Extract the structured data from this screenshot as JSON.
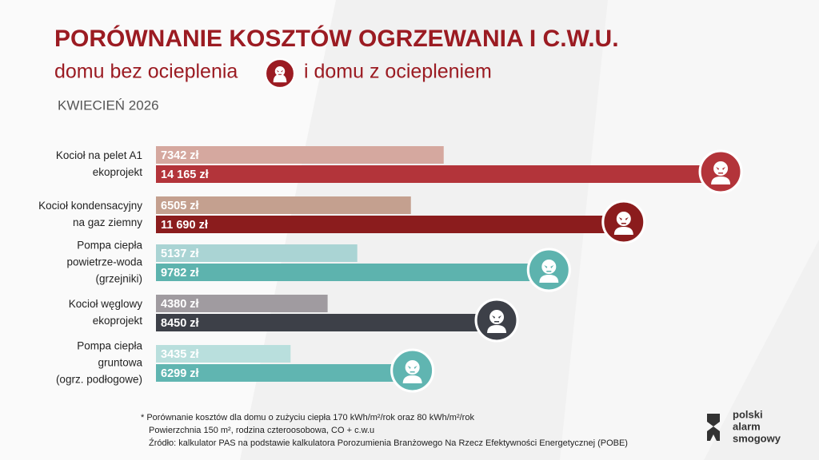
{
  "header": {
    "title": "PORÓWNANIE KOSZTÓW OGRZEWANIA I C.W.U.",
    "subtitle_left": "domu bez ocieplenia",
    "subtitle_right": "i domu z ociepleniem",
    "date": "KWIECIEŃ 2026"
  },
  "chart_data": {
    "type": "hbar-pairs",
    "categories": [
      [
        "Kocioł na pelet A1",
        "ekoprojekt"
      ],
      [
        "Kocioł kondensacyjny",
        "na gaz ziemny"
      ],
      [
        "Pompa ciepła",
        "powietrze-woda",
        "(grzejniki)"
      ],
      [
        "Kocioł węglowy",
        "ekoprojekt"
      ],
      [
        "Pompa ciepła",
        "gruntowa",
        "(ogrz. podłogowe)"
      ]
    ],
    "series": [
      {
        "colors": [
          "#d5a89f",
          "#c4a08f",
          "#aad4d4",
          "#a09ba0",
          "#b9dfdd"
        ],
        "values": [
          7342,
          6505,
          5137,
          4380,
          3435
        ],
        "value_labels": [
          "7342 zł",
          "6505 zł",
          "5137 zł",
          "4380 zł",
          "3435 zł"
        ]
      },
      {
        "colors": [
          "#b3343a",
          "#8b1c1d",
          "#5db3ae",
          "#3d4048",
          "#60b5b1"
        ],
        "values": [
          14165,
          11690,
          9782,
          8450,
          6299
        ],
        "value_labels": [
          "14 165 zł",
          "11 690 zł",
          "9782 zł",
          "8450 zł",
          "6299 zł"
        ]
      }
    ]
  },
  "footnotes": [
    "* Porównanie kosztów dla domu o zużyciu ciepła 170 kWh/m²/rok oraz 80 kWh/m²/rok",
    "Powierzchnia 150 m², rodzina czteroosobowa, CO + c.w.u",
    "Źródło: kalkulator PAS na podstawie kalkulatora Porozumienia Branżowego Na Rzecz Efektywności Energetycznej (POBE)"
  ],
  "logo": [
    "polski",
    "alarm",
    "smogowy"
  ]
}
